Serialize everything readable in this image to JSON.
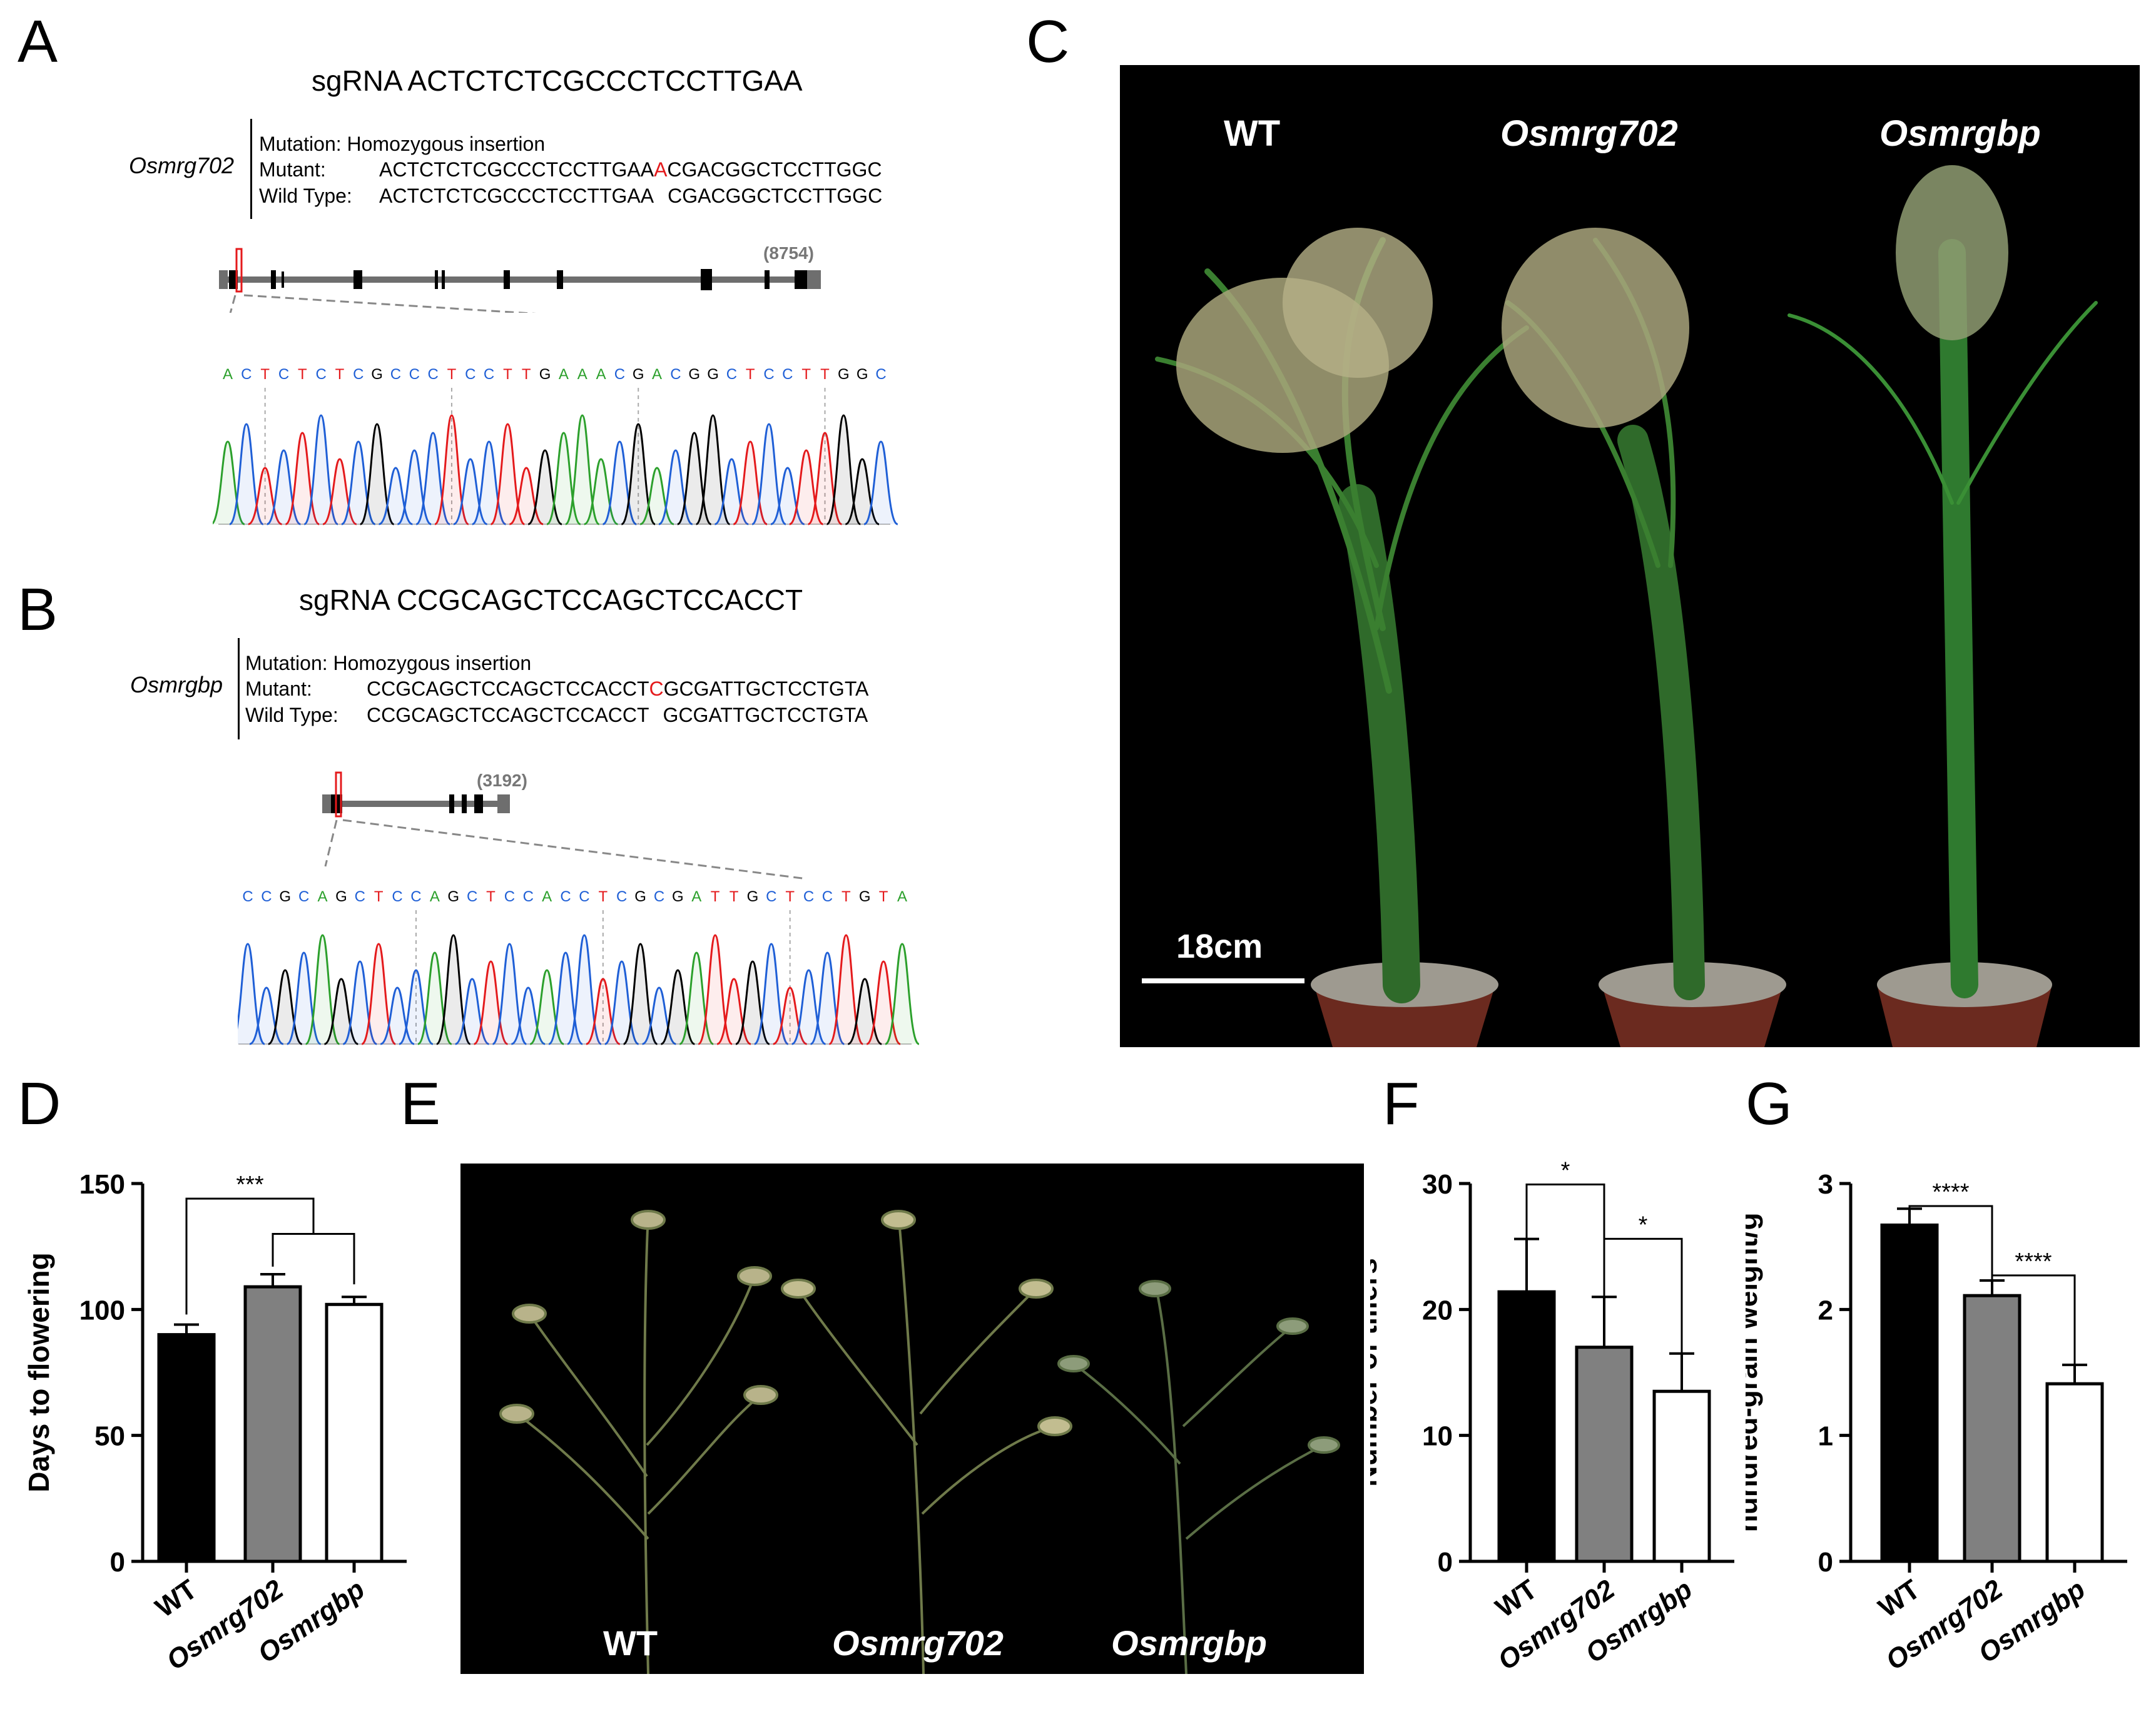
{
  "panel_labels": {
    "A": "A",
    "B": "B",
    "C": "C",
    "D": "D",
    "E": "E",
    "F": "F",
    "G": "G"
  },
  "panelA": {
    "sgrna_prefix": "sgRNA",
    "sgrna": "ACTCTCTCGCCCTCCTTGAA",
    "gene": "Osmrg702",
    "mutation_label": "Mutation:",
    "mutation_value": "Homozygous insertion",
    "mutant_label": "Mutant:",
    "mutant_seq_pre": "ACTCTCTCGCCCTCCTTGAA",
    "mutant_insert": "A",
    "mutant_seq_post": "CGACGGCTCCTTGGC",
    "wt_label": "Wild Type:",
    "wt_seq_pre": "ACTCTCTCGCCCTCCTTGAA",
    "wt_seq_post": "CGACGGCTCCTTGGC",
    "gene_length": "(8754)",
    "chromatogram_seq": "ACTCTCTCGCCCTCCTTGAAACGACGGCTCCTTGGC"
  },
  "panelB": {
    "sgrna_prefix": "sgRNA",
    "sgrna": "CCGCAGCTCCAGCTCCACCT",
    "gene": "Osmrgbp",
    "mutation_label": "Mutation:",
    "mutation_value": "Homozygous insertion",
    "mutant_label": "Mutant:",
    "mutant_seq_pre": "CCGCAGCTCCAGCTCCACCT",
    "mutant_insert": "C",
    "mutant_seq_post": "GCGATTGCTCCTGTA",
    "wt_label": "Wild Type:",
    "wt_seq_pre": "CCGCAGCTCCAGCTCCACCT",
    "wt_seq_post": "GCGATTGCTCCTGTA",
    "gene_length": "(3192)",
    "chromatogram_seq": "CCGCAGCTCCAGCTCCACCTCGCGATTGCTCCTGTA"
  },
  "panelC": {
    "labels": [
      "WT",
      "Osmrg702",
      "Osmrgbp"
    ],
    "scale_bar": "18cm"
  },
  "panelE": {
    "labels": [
      "WT",
      "Osmrg702",
      "Osmrgbp"
    ]
  },
  "colors": {
    "A": "#2ca02c",
    "C": "#1f5fd6",
    "G": "#000000",
    "T": "#e41a1c",
    "bar_wt": "#000000",
    "bar_702": "#808080",
    "bar_gbp": "#ffffff"
  },
  "chart_data": [
    {
      "panel": "D",
      "type": "bar",
      "categories": [
        "WT",
        "Osmrg702",
        "Osmrgbp"
      ],
      "values": [
        90,
        109,
        102
      ],
      "errors": [
        4,
        5,
        3
      ],
      "ylabel": "Days to flowering",
      "ylim": [
        0,
        150
      ],
      "yticks": [
        "0",
        "50",
        "100",
        "150"
      ],
      "significance": [
        "***"
      ]
    },
    {
      "panel": "F",
      "type": "bar",
      "categories": [
        "WT",
        "Osmrg702",
        "Osmrgbp"
      ],
      "values": [
        21.4,
        17.0,
        13.5
      ],
      "errors": [
        4.2,
        4.0,
        3.0
      ],
      "ylabel": "Number of tillers",
      "ylim": [
        0,
        30
      ],
      "yticks": [
        "0",
        "10",
        "20",
        "30"
      ],
      "significance": [
        "*",
        "*"
      ]
    },
    {
      "panel": "G",
      "type": "bar",
      "categories": [
        "WT",
        "Osmrg702",
        "Osmrgbp"
      ],
      "values": [
        2.67,
        2.11,
        1.41
      ],
      "errors": [
        0.13,
        0.12,
        0.15
      ],
      "ylabel": "hundred-grain weight/g",
      "ylim": [
        0,
        3
      ],
      "yticks": [
        "0",
        "1",
        "2",
        "3"
      ],
      "significance": [
        "****",
        "****"
      ]
    }
  ]
}
